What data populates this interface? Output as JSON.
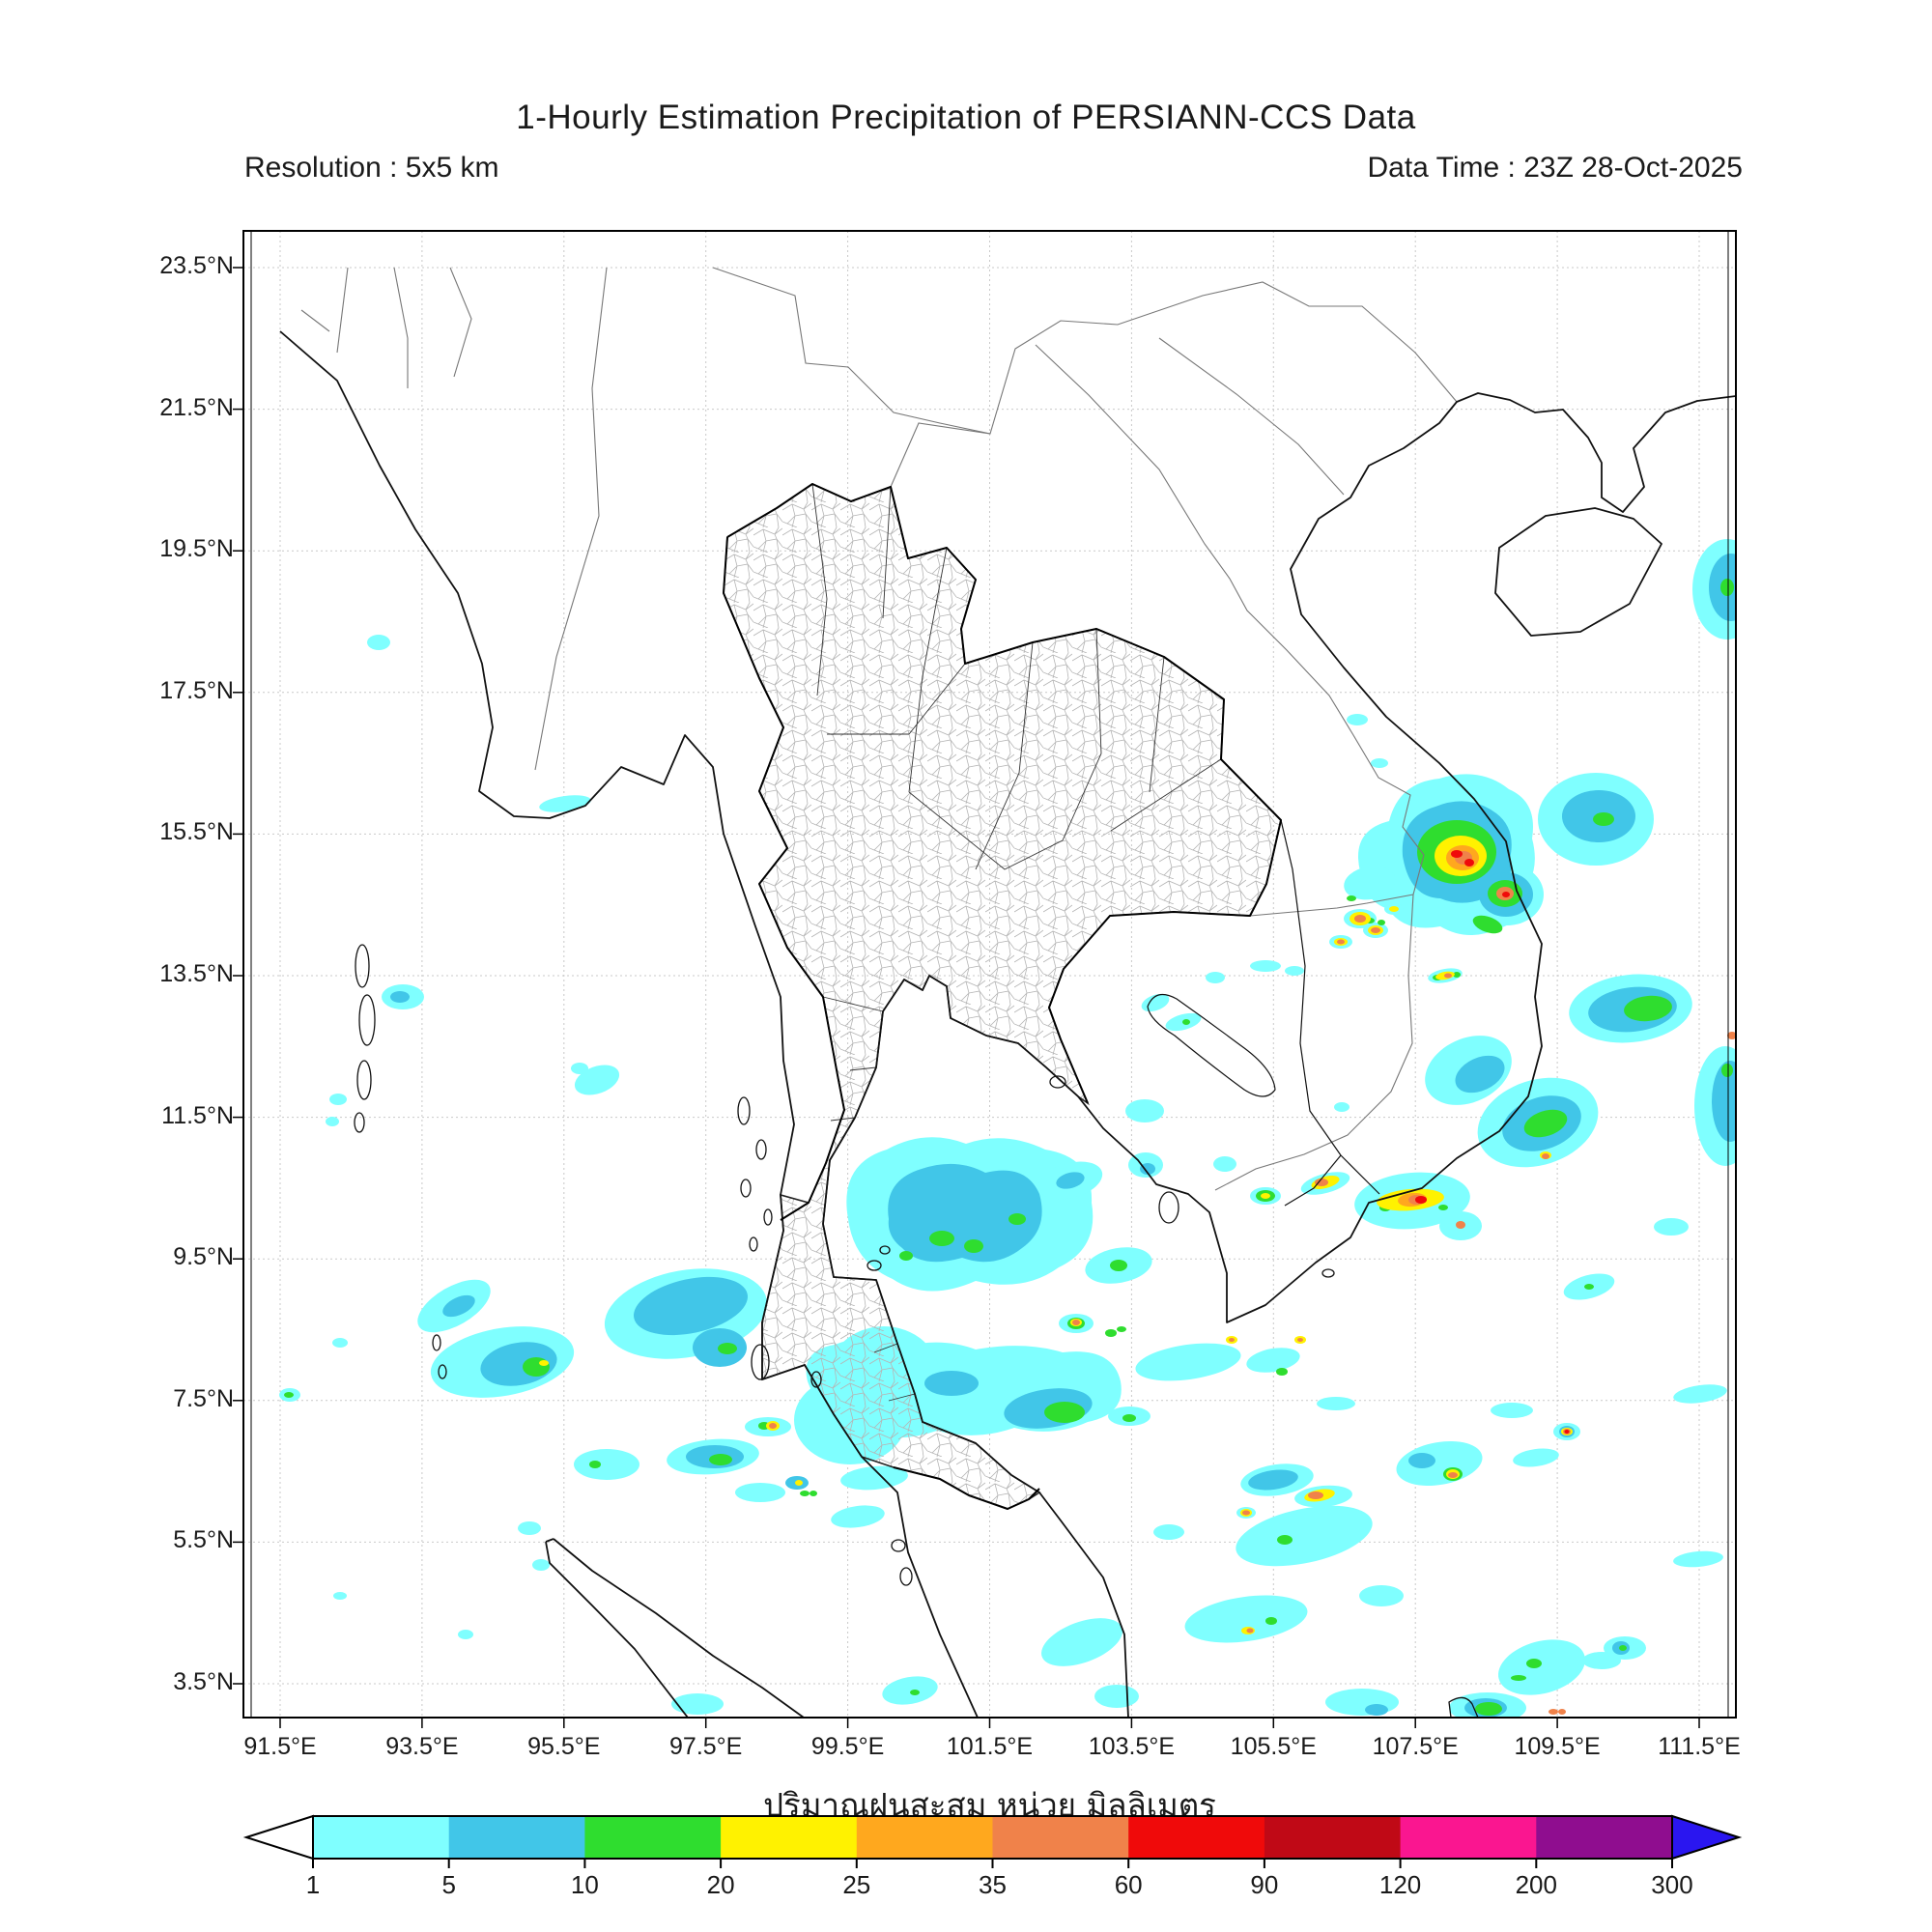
{
  "header": {
    "title": "1-Hourly Estimation Precipitation of PERSIANN-CCS Data",
    "resolution": "Resolution : 5x5 km",
    "data_time": "Data Time : 23Z 28-Oct-2025"
  },
  "map": {
    "lat_ticks": [
      "23.5°N",
      "21.5°N",
      "19.5°N",
      "17.5°N",
      "15.5°N",
      "13.5°N",
      "11.5°N",
      "9.5°N",
      "7.5°N",
      "5.5°N",
      "3.5°N"
    ],
    "lon_ticks": [
      "91.5°E",
      "93.5°E",
      "95.5°E",
      "97.5°E",
      "99.5°E",
      "101.5°E",
      "103.5°E",
      "105.5°E",
      "107.5°E",
      "109.5°E",
      "111.5°E"
    ]
  },
  "caption": {
    "unit_label_thai": "ปริมาณฝนสะสม หน่วย มิลลิเมตร"
  },
  "colorbar": {
    "ticks": [
      "1",
      "5",
      "10",
      "20",
      "25",
      "35",
      "60",
      "90",
      "120",
      "200",
      "300"
    ],
    "colors": [
      "#7FFFFF",
      "#41C6E8",
      "#2FDD2F",
      "#FFF200",
      "#FFA81E",
      "#F0824A",
      "#F00A0A",
      "#C00916",
      "#FA1690",
      "#8F0D8F"
    ],
    "arrow_left_color": "#FFFFFF",
    "arrow_right_color": "#2A16F0"
  }
}
